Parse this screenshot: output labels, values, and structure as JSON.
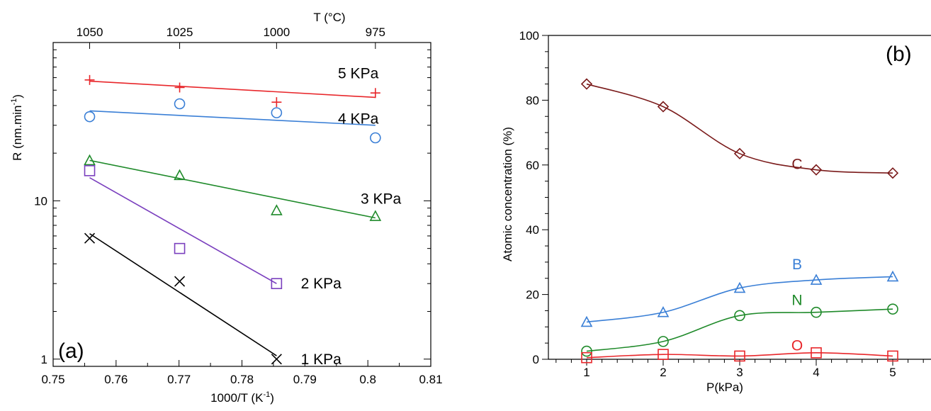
{
  "chart_data": [
    {
      "type": "scatter",
      "panel_label": "(a)",
      "xlabel": "1000/T (K",
      "xlabel_sup": "-1",
      "xlabel_close": ")",
      "ylabel": "R (nm.min",
      "ylabel_sup": "-1",
      "ylabel_close": ")",
      "top_axis_label": "T (°C)",
      "xlim": [
        0.75,
        0.81
      ],
      "ylim": [
        0.9,
        100
      ],
      "yscale": "log",
      "grid": false,
      "xticks": [
        "0.75",
        "0.76",
        "0.77",
        "0.78",
        "0.79",
        "0.8",
        "0.81"
      ],
      "yticks": [
        "1",
        "10"
      ],
      "top_ticks": [
        {
          "label": "1050",
          "x": 0.7558
        },
        {
          "label": "1025",
          "x": 0.7701
        },
        {
          "label": "1000",
          "x": 0.7855
        },
        {
          "label": "975",
          "x": 0.8012
        }
      ],
      "series": [
        {
          "name": "5 KPa",
          "color": "#e8262a",
          "marker": "plus",
          "x": [
            0.7558,
            0.7701,
            0.7855,
            0.8012
          ],
          "y": [
            58,
            52,
            42,
            48
          ],
          "fit": [
            [
              0.7558,
              57
            ],
            [
              0.8012,
              45
            ]
          ]
        },
        {
          "name": "4 KPa",
          "color": "#3a7fd6",
          "marker": "circle",
          "x": [
            0.7558,
            0.7701,
            0.7855,
            0.8012
          ],
          "y": [
            34,
            41,
            36,
            25
          ],
          "fit": [
            [
              0.7558,
              37
            ],
            [
              0.8012,
              30
            ]
          ]
        },
        {
          "name": "3 KPa",
          "color": "#1f8a2a",
          "marker": "triangle",
          "x": [
            0.7558,
            0.7701,
            0.7855,
            0.8012
          ],
          "y": [
            18,
            14.5,
            8.7,
            8
          ],
          "fit": [
            [
              0.7558,
              18
            ],
            [
              0.8012,
              7.8
            ]
          ]
        },
        {
          "name": "2 KPa",
          "color": "#7a3fbe",
          "marker": "square",
          "x": [
            0.7558,
            0.7701,
            0.7855
          ],
          "y": [
            15.5,
            5,
            3
          ],
          "fit": [
            [
              0.7558,
              14
            ],
            [
              0.7855,
              3
            ]
          ]
        },
        {
          "name": "1 KPa",
          "color": "#000000",
          "marker": "cross",
          "x": [
            0.7558,
            0.7701,
            0.7855
          ],
          "y": [
            5.8,
            3.1,
            1
          ],
          "fit": [
            [
              0.7558,
              6.2
            ],
            [
              0.7855,
              1.05
            ]
          ]
        }
      ]
    },
    {
      "type": "line",
      "panel_label": "(b)",
      "xlabel": "P(kPa)",
      "ylabel": "Atomic concentration (%)",
      "xlim": [
        0.5,
        5.5
      ],
      "ylim": [
        0,
        100
      ],
      "grid": false,
      "x": [
        1,
        2,
        3,
        4,
        5
      ],
      "xticks": [
        "1",
        "2",
        "3",
        "4",
        "5"
      ],
      "yticks": [
        "0",
        "20",
        "40",
        "60",
        "80",
        "100"
      ],
      "series": [
        {
          "name": "C",
          "color": "#7a1a1a",
          "marker": "diamond",
          "values": [
            85,
            78,
            63.5,
            58.5,
            57.5
          ]
        },
        {
          "name": "B",
          "color": "#3a7fd6",
          "marker": "triangle",
          "values": [
            11.5,
            14.5,
            22,
            24.5,
            25.5
          ]
        },
        {
          "name": "N",
          "color": "#1f8a2a",
          "marker": "circle",
          "values": [
            2.5,
            5.5,
            13.5,
            14.5,
            15.5
          ]
        },
        {
          "name": "O",
          "color": "#e8262a",
          "marker": "square",
          "values": [
            0.5,
            1.5,
            1,
            2,
            1
          ]
        }
      ]
    }
  ]
}
